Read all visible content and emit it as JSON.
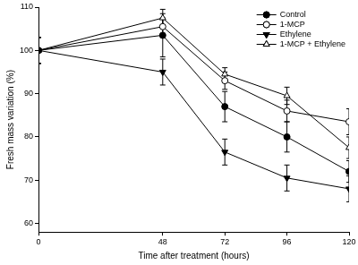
{
  "chart_data": {
    "type": "line",
    "x_label": "Time after treatment (hours)",
    "y_label": "Fresh mass variation (%)",
    "x": [
      0,
      48,
      72,
      96,
      120
    ],
    "xlim": [
      0,
      120
    ],
    "xticks": [
      0,
      48,
      72,
      96,
      120
    ],
    "ylim": [
      58,
      110
    ],
    "yticks": [
      60,
      70,
      80,
      90,
      100,
      110
    ],
    "grid": false,
    "legend": "top-right",
    "series": [
      {
        "name": "Control",
        "color": "#000000",
        "marker": "circle",
        "line_style": "solid",
        "values": [
          100,
          103.5,
          87,
          80,
          72
        ],
        "errors": [
          3,
          5,
          3.5,
          3.5,
          2.5
        ]
      },
      {
        "name": "1-MCP",
        "color": "#000000",
        "marker": "open-circle",
        "line_style": "solid",
        "values": [
          100,
          105.5,
          93,
          86,
          83.5
        ],
        "errors": [
          3,
          2,
          2,
          2.5,
          3
        ]
      },
      {
        "name": "Ethylene",
        "color": "#000000",
        "marker": "triangle-down",
        "line_style": "solid",
        "values": [
          100,
          95,
          76.5,
          70.5,
          68
        ],
        "errors": [
          3,
          3,
          3,
          3,
          3
        ]
      },
      {
        "name": "1-MCP + Ethylene",
        "color": "#000000",
        "marker": "open-triangle",
        "line_style": "solid",
        "values": [
          100,
          107.5,
          94.5,
          89.5,
          77.5
        ],
        "errors": [
          3,
          2,
          1.5,
          2,
          2.5
        ]
      }
    ]
  }
}
